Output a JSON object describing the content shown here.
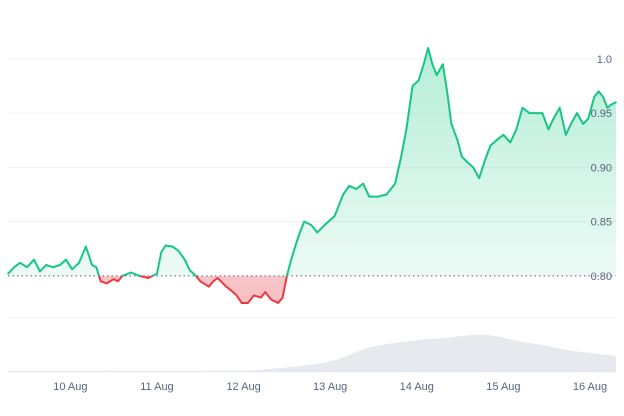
{
  "chart_data": {
    "type": "area",
    "baseline": 0.8,
    "ylim": [
      0.763,
      1.045
    ],
    "y_ticks": [
      0.8,
      0.85,
      0.9,
      0.95,
      1.0
    ],
    "y_tick_labels": [
      "0.80",
      "0.85",
      "0.90",
      "0.95",
      "1.0"
    ],
    "x_ticks": [
      1,
      2,
      3,
      4,
      5,
      6,
      7
    ],
    "x_tick_labels": [
      "10 Aug",
      "11 Aug",
      "12 Aug",
      "13 Aug",
      "14 Aug",
      "15 Aug",
      "16 Aug"
    ],
    "xlim": [
      0.28,
      7.3
    ],
    "grid": true,
    "series": [
      {
        "points": [
          [
            0.28,
            0.802
          ],
          [
            0.35,
            0.808
          ],
          [
            0.42,
            0.812
          ],
          [
            0.5,
            0.808
          ],
          [
            0.58,
            0.815
          ],
          [
            0.65,
            0.804
          ],
          [
            0.72,
            0.81
          ],
          [
            0.8,
            0.808
          ],
          [
            0.88,
            0.81
          ],
          [
            0.95,
            0.815
          ],
          [
            1.02,
            0.806
          ],
          [
            1.1,
            0.812
          ],
          [
            1.18,
            0.827
          ],
          [
            1.25,
            0.81
          ],
          [
            1.3,
            0.808
          ],
          [
            1.35,
            0.795
          ],
          [
            1.42,
            0.793
          ],
          [
            1.5,
            0.797
          ],
          [
            1.55,
            0.795
          ],
          [
            1.6,
            0.8
          ],
          [
            1.7,
            0.803
          ],
          [
            1.8,
            0.8
          ],
          [
            1.9,
            0.798
          ],
          [
            1.95,
            0.8
          ],
          [
            2.0,
            0.802
          ],
          [
            2.05,
            0.822
          ],
          [
            2.1,
            0.828
          ],
          [
            2.18,
            0.827
          ],
          [
            2.25,
            0.823
          ],
          [
            2.32,
            0.815
          ],
          [
            2.38,
            0.805
          ],
          [
            2.45,
            0.8
          ],
          [
            2.5,
            0.795
          ],
          [
            2.6,
            0.79
          ],
          [
            2.65,
            0.795
          ],
          [
            2.7,
            0.798
          ],
          [
            2.8,
            0.79
          ],
          [
            2.85,
            0.787
          ],
          [
            2.92,
            0.782
          ],
          [
            2.98,
            0.775
          ],
          [
            3.05,
            0.775
          ],
          [
            3.12,
            0.782
          ],
          [
            3.2,
            0.78
          ],
          [
            3.25,
            0.785
          ],
          [
            3.32,
            0.778
          ],
          [
            3.4,
            0.775
          ],
          [
            3.45,
            0.78
          ],
          [
            3.5,
            0.8
          ],
          [
            3.55,
            0.815
          ],
          [
            3.6,
            0.828
          ],
          [
            3.65,
            0.84
          ],
          [
            3.7,
            0.85
          ],
          [
            3.78,
            0.847
          ],
          [
            3.85,
            0.84
          ],
          [
            3.95,
            0.848
          ],
          [
            4.05,
            0.855
          ],
          [
            4.15,
            0.875
          ],
          [
            4.22,
            0.883
          ],
          [
            4.3,
            0.88
          ],
          [
            4.38,
            0.885
          ],
          [
            4.45,
            0.873
          ],
          [
            4.55,
            0.873
          ],
          [
            4.65,
            0.875
          ],
          [
            4.75,
            0.885
          ],
          [
            4.82,
            0.91
          ],
          [
            4.88,
            0.935
          ],
          [
            4.95,
            0.975
          ],
          [
            5.02,
            0.98
          ],
          [
            5.08,
            0.995
          ],
          [
            5.13,
            1.01
          ],
          [
            5.18,
            0.995
          ],
          [
            5.23,
            0.985
          ],
          [
            5.3,
            0.995
          ],
          [
            5.35,
            0.97
          ],
          [
            5.4,
            0.94
          ],
          [
            5.47,
            0.925
          ],
          [
            5.52,
            0.91
          ],
          [
            5.58,
            0.905
          ],
          [
            5.65,
            0.9
          ],
          [
            5.72,
            0.89
          ],
          [
            5.78,
            0.905
          ],
          [
            5.85,
            0.92
          ],
          [
            5.92,
            0.925
          ],
          [
            6.0,
            0.93
          ],
          [
            6.08,
            0.923
          ],
          [
            6.15,
            0.935
          ],
          [
            6.22,
            0.955
          ],
          [
            6.3,
            0.95
          ],
          [
            6.38,
            0.95
          ],
          [
            6.45,
            0.95
          ],
          [
            6.52,
            0.935
          ],
          [
            6.58,
            0.945
          ],
          [
            6.65,
            0.955
          ],
          [
            6.72,
            0.93
          ],
          [
            6.78,
            0.94
          ],
          [
            6.85,
            0.95
          ],
          [
            6.92,
            0.94
          ],
          [
            6.98,
            0.945
          ],
          [
            7.05,
            0.965
          ],
          [
            7.1,
            0.97
          ],
          [
            7.15,
            0.965
          ],
          [
            7.2,
            0.955
          ],
          [
            7.25,
            0.958
          ],
          [
            7.3,
            0.96
          ]
        ]
      }
    ],
    "volume": [
      0.02,
      0.02,
      0.02,
      0.02,
      0.02,
      0.02,
      0.02,
      0.02,
      0.02,
      0.02,
      0.02,
      0.02,
      0.03,
      0.02,
      0.02,
      0.02,
      0.02,
      0.02,
      0.02,
      0.02,
      0.02,
      0.02,
      0.02,
      0.02,
      0.03,
      0.03,
      0.03,
      0.03,
      0.03,
      0.04,
      0.05,
      0.07,
      0.08,
      0.1,
      0.12,
      0.14,
      0.16,
      0.19,
      0.23,
      0.28,
      0.35,
      0.42,
      0.48,
      0.52,
      0.55,
      0.58,
      0.6,
      0.62,
      0.64,
      0.66,
      0.67,
      0.68,
      0.7,
      0.72,
      0.74,
      0.75,
      0.74,
      0.72,
      0.68,
      0.64,
      0.6,
      0.58,
      0.55,
      0.52,
      0.48,
      0.45,
      0.42,
      0.4,
      0.38,
      0.36,
      0.34,
      0.32
    ],
    "colors": {
      "up": "#16c784",
      "down": "#ea3943",
      "grid": "#eff2f5",
      "baseline": "#58667e",
      "axis_text": "#58667e",
      "volume": "#e6e9ee"
    }
  }
}
